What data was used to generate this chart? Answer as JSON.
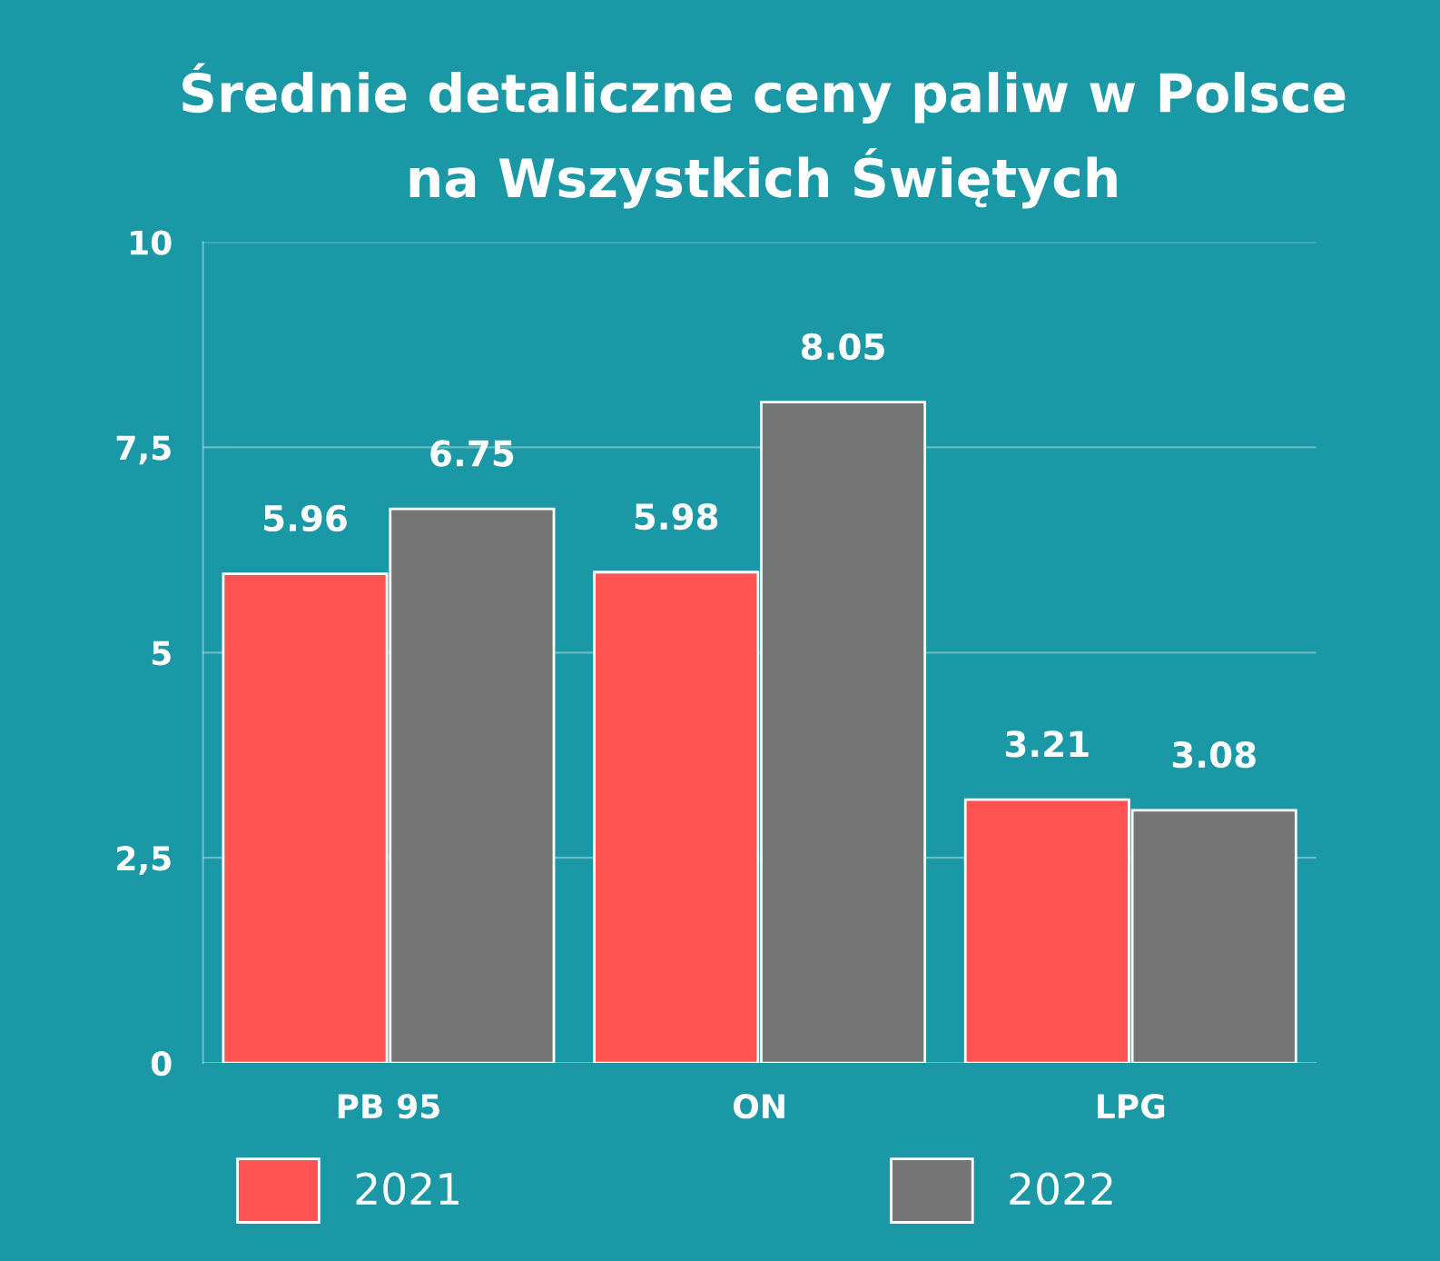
{
  "chart_data": {
    "type": "bar",
    "title": "Średnie detaliczne ceny paliw w Polsce\nna Wszystkich Świętych",
    "categories": [
      "PB 95",
      "ON",
      "LPG"
    ],
    "series": [
      {
        "name": "2021",
        "color": "#ff5252",
        "values": [
          5.96,
          5.98,
          3.21
        ]
      },
      {
        "name": "2022",
        "color": "#757575",
        "values": [
          6.75,
          8.05,
          3.08
        ]
      }
    ],
    "ylim": [
      0,
      10
    ],
    "yticks": [
      0,
      {
        "value": 2.5,
        "label": "2,5"
      },
      5,
      {
        "value": 7.5,
        "label": "7,5"
      },
      10
    ],
    "grid": "y",
    "legend": "bottom",
    "data_labels": true
  }
}
